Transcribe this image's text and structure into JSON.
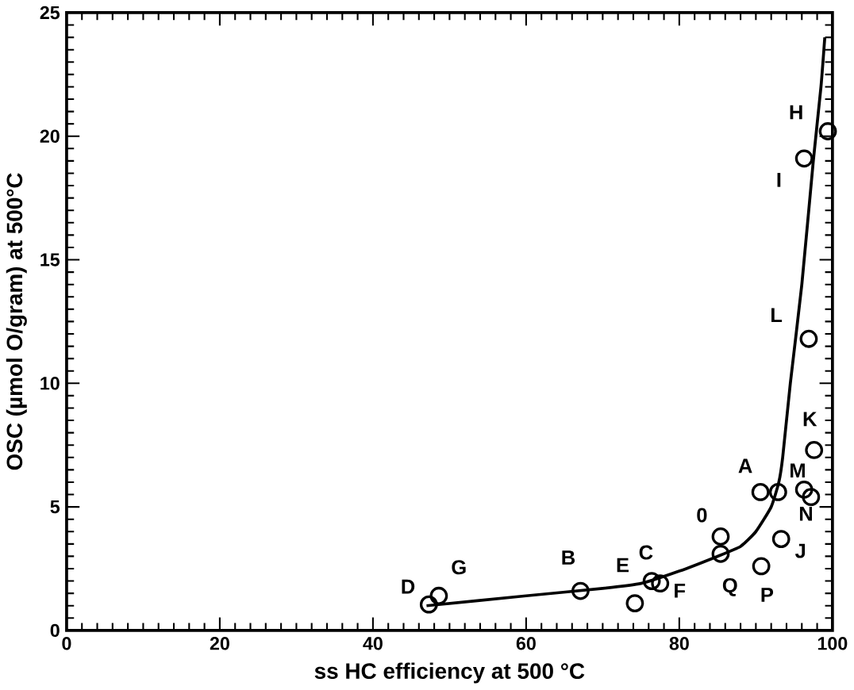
{
  "chart_data": {
    "type": "scatter",
    "xlabel": "ss HC efficiency at 500 °C",
    "ylabel": "OSC (µmol O/gram) at 500°C",
    "xlim": [
      0,
      100
    ],
    "ylim": [
      0,
      25
    ],
    "xticks": [
      0,
      20,
      40,
      60,
      80,
      100
    ],
    "yticks": [
      0,
      5,
      10,
      15,
      20,
      25
    ],
    "grid": false,
    "legend": false,
    "marker": "circle",
    "series": [
      {
        "color": "#000000",
        "x": [
          47.3,
          48.6,
          67.1,
          74.2,
          76.4,
          77.5,
          85.4,
          85.4,
          90.7,
          93.3,
          90.6,
          92.9,
          96.3,
          97.2,
          97.6,
          96.9,
          96.3,
          99.4
        ],
        "values": [
          1.05,
          1.4,
          1.6,
          1.1,
          2.0,
          1.9,
          3.8,
          3.1,
          2.6,
          3.7,
          5.6,
          5.6,
          5.7,
          5.4,
          7.3,
          11.8,
          19.1,
          20.2
        ]
      },
      {
        "type": "line",
        "color": "#000000",
        "marker": "none",
        "line_style": "solid",
        "x": [
          47,
          60,
          70,
          75,
          80,
          85,
          88,
          90,
          92,
          93,
          93.5,
          94.5,
          96,
          97.5,
          98.5,
          99
        ],
        "values": [
          1.0,
          1.4,
          1.7,
          1.9,
          2.4,
          3.0,
          3.4,
          4.0,
          5.0,
          6.0,
          7.0,
          10.0,
          14.0,
          19.0,
          22.0,
          24.0
        ]
      }
    ],
    "annotations": [
      {
        "text": "D",
        "x": 47.3,
        "y": 1.05
      },
      {
        "text": "G",
        "x": 48.6,
        "y": 1.4
      },
      {
        "text": "B",
        "x": 67.1,
        "y": 1.6
      },
      {
        "text": "E",
        "x": 74.2,
        "y": 1.1
      },
      {
        "text": "C",
        "x": 76.4,
        "y": 2.0
      },
      {
        "text": "F",
        "x": 77.5,
        "y": 1.9
      },
      {
        "text": "0",
        "x": 85.4,
        "y": 3.8
      },
      {
        "text": "Q",
        "x": 85.4,
        "y": 3.1
      },
      {
        "text": "P",
        "x": 90.7,
        "y": 2.6
      },
      {
        "text": "J",
        "x": 93.3,
        "y": 3.7
      },
      {
        "text": "N",
        "x": 97.2,
        "y": 5.4
      },
      {
        "text": "M",
        "x": 96.3,
        "y": 5.7
      },
      {
        "text": "A",
        "x": 90.6,
        "y": 5.6
      },
      {
        "text": "K",
        "x": 97.6,
        "y": 7.3
      },
      {
        "text": "L",
        "x": 96.9,
        "y": 11.8
      },
      {
        "text": "I",
        "x": 96.3,
        "y": 19.1
      },
      {
        "text": "H",
        "x": 99.4,
        "y": 20.2
      }
    ]
  }
}
